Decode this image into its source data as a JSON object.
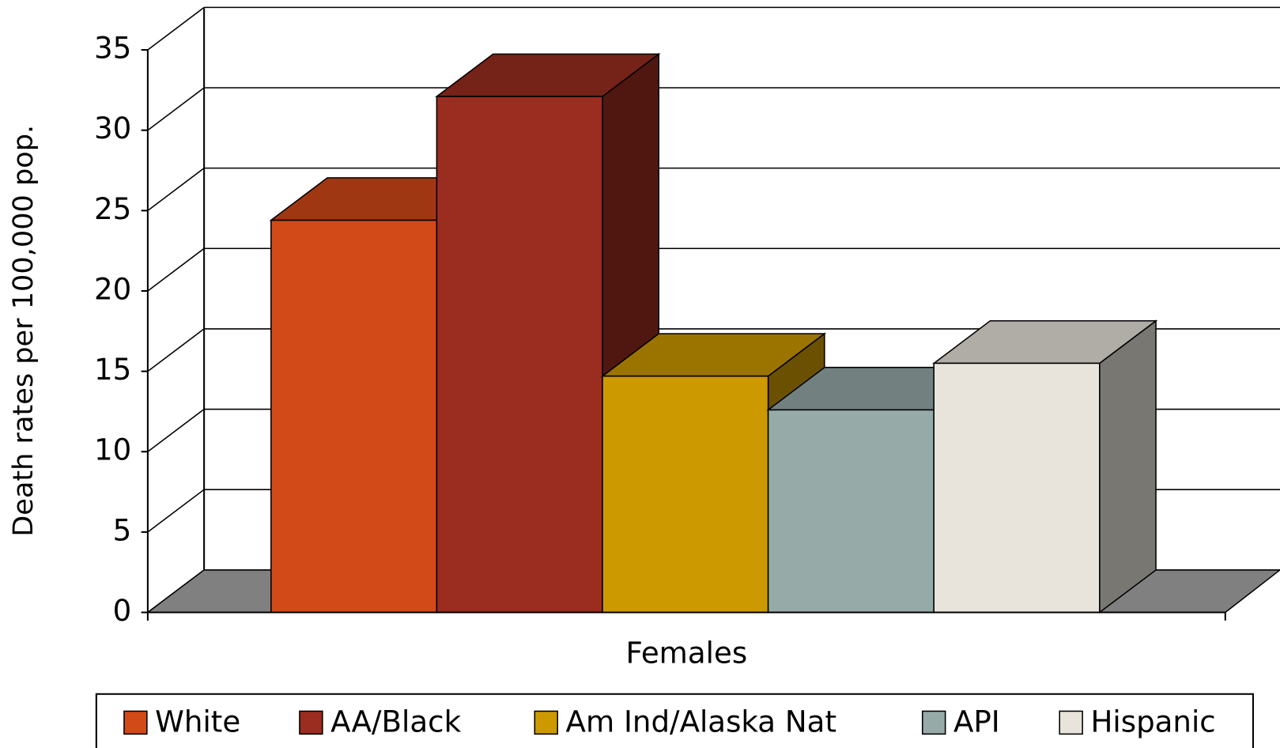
{
  "chart_data": {
    "type": "bar3d",
    "categories": [
      "Females"
    ],
    "y_label": "Death rates per 100,000 pop.",
    "ylim": [
      0,
      35
    ],
    "yticks": [
      0,
      5,
      10,
      15,
      20,
      25,
      30,
      35
    ],
    "grid": true,
    "legend": "bottom",
    "series": [
      {
        "name": "White",
        "color": "#d14a18",
        "values": [
          24.4
        ]
      },
      {
        "name": "AA/Black",
        "color": "#9a2d20",
        "values": [
          32.1
        ]
      },
      {
        "name": "Am Ind/Alaska Nat",
        "color": "#cc9900",
        "values": [
          14.7
        ]
      },
      {
        "name": "API",
        "color": "#96aaa8",
        "values": [
          12.6
        ]
      },
      {
        "name": "Hispanic",
        "color": "#e8e4dc",
        "values": [
          15.5
        ]
      }
    ]
  }
}
